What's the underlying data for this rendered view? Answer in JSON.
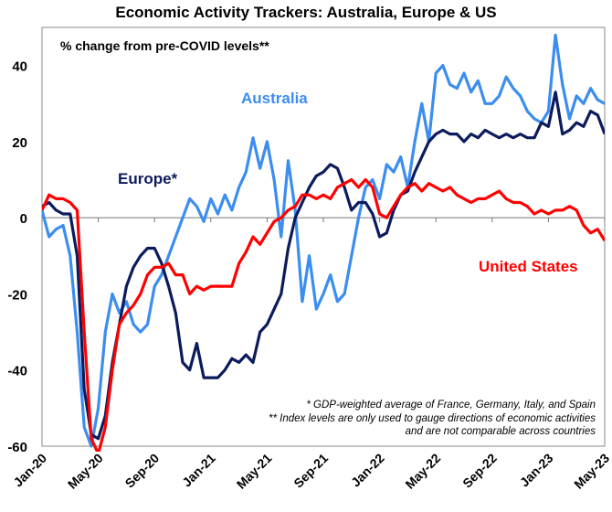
{
  "chart_data": {
    "type": "line",
    "title": "Economic Activity Trackers: Australia, Europe & US",
    "subtitle": "% change from pre-COVID levels**",
    "xlabel": "",
    "ylabel": "",
    "ylim": [
      -60,
      50
    ],
    "yticks": [
      40,
      20,
      0,
      -20,
      -40,
      -60
    ],
    "xlim_months_since_jan20": [
      0,
      40
    ],
    "xtick_labels": [
      "Jan-20",
      "May-20",
      "Sep-20",
      "Jan-21",
      "May-21",
      "Sep-21",
      "Jan-22",
      "May-22",
      "Sep-22",
      "Jan-23",
      "May-23"
    ],
    "x_step_months": 0.5,
    "grid": false,
    "series": [
      {
        "name": "Australia",
        "label": "Australia",
        "color": "#3C8DF0",
        "values": [
          2,
          -5,
          -3,
          -2,
          -10,
          -30,
          -55,
          -60,
          -50,
          -30,
          -20,
          -25,
          -22,
          -28,
          -30,
          -28,
          -18,
          -15,
          -10,
          -5,
          0,
          5,
          3,
          -1,
          5,
          1,
          6,
          2,
          8,
          12,
          21,
          13,
          20,
          10,
          -5,
          15,
          2,
          -22,
          -10,
          -24,
          -20,
          -15,
          -22,
          -20,
          -10,
          0,
          8,
          10,
          5,
          14,
          12,
          16,
          8,
          20,
          30,
          20,
          38,
          40,
          35,
          34,
          38,
          33,
          36,
          30,
          30,
          32,
          37,
          34,
          32,
          28,
          26,
          25,
          28,
          48,
          35,
          26,
          32,
          30,
          34,
          31,
          30
        ]
      },
      {
        "name": "Europe*",
        "label": "Europe*",
        "color": "#0C1B5C",
        "values": [
          3,
          4,
          2,
          1,
          1,
          -10,
          -45,
          -57,
          -58,
          -52,
          -38,
          -28,
          -18,
          -13,
          -10,
          -8,
          -8,
          -12,
          -18,
          -25,
          -38,
          -40,
          -33,
          -42,
          -42,
          -42,
          -40,
          -37,
          -38,
          -36,
          -38,
          -30,
          -28,
          -24,
          -20,
          -8,
          0,
          4,
          8,
          11,
          12,
          14,
          13,
          8,
          2,
          4,
          4,
          1,
          -5,
          -4,
          2,
          6,
          7,
          12,
          16,
          20,
          22,
          23,
          22,
          22,
          20,
          22,
          21,
          23,
          22,
          21,
          22,
          21,
          22,
          21,
          21,
          25,
          24,
          33,
          22,
          23,
          25,
          24,
          28,
          27,
          22
        ]
      },
      {
        "name": "United States",
        "label": "United States",
        "color": "#FF0000",
        "values": [
          2,
          6,
          5,
          5,
          4,
          2,
          -30,
          -58,
          -62,
          -55,
          -40,
          -28,
          -25,
          -23,
          -20,
          -15,
          -13,
          -13,
          -12,
          -15,
          -15,
          -20,
          -18,
          -19,
          -18,
          -18,
          -18,
          -18,
          -12,
          -9,
          -5,
          -7,
          -4,
          -1,
          0,
          2,
          3,
          6,
          6,
          5,
          6,
          5,
          8,
          9,
          10,
          8,
          10,
          8,
          1,
          0,
          3,
          6,
          8,
          9,
          7,
          9,
          8,
          7,
          8,
          6,
          5,
          4,
          5,
          5,
          6,
          7,
          5,
          4,
          4,
          3,
          1,
          2,
          1,
          2,
          2,
          3,
          2,
          -2,
          -4,
          -3,
          -6
        ]
      }
    ],
    "footnotes": [
      "* GDP-weighted average of France, Germany, Italy, and Spain",
      "** Index levels are only used to gauge  directions of economic activities",
      "and are not comparable across countries"
    ]
  }
}
